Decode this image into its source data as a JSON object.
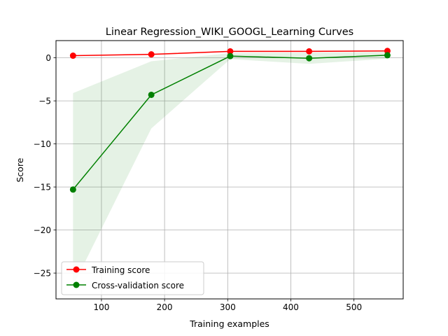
{
  "chart_data": {
    "type": "line",
    "title": "Linear Regression_WIKI_GOOGL_Learning Curves",
    "xlabel": "Training examples",
    "ylabel": "Score",
    "xlim": [
      28,
      578
    ],
    "ylim": [
      -28,
      2
    ],
    "xticks": [
      100,
      200,
      300,
      400,
      500
    ],
    "yticks": [
      0,
      -5,
      -10,
      -15,
      -20,
      -25
    ],
    "grid": true,
    "legend_position": "lower-left",
    "x": [
      55,
      179,
      304,
      429,
      553
    ],
    "series": [
      {
        "name": "Training score",
        "color": "#ff0000",
        "marker": "circle",
        "values": [
          0.25,
          0.4,
          0.75,
          0.75,
          0.8
        ],
        "band_lower": [
          0.2,
          0.3,
          0.65,
          0.65,
          0.75
        ],
        "band_upper": [
          0.3,
          0.5,
          0.85,
          0.85,
          0.85
        ]
      },
      {
        "name": "Cross-validation score",
        "color": "#008000",
        "marker": "circle",
        "values": [
          -15.3,
          -4.3,
          0.2,
          -0.05,
          0.3
        ],
        "band_lower": [
          -26.5,
          -8.2,
          -0.15,
          -0.7,
          -0.1
        ],
        "band_upper": [
          -4.1,
          -0.4,
          0.55,
          0.6,
          0.7
        ]
      }
    ]
  }
}
